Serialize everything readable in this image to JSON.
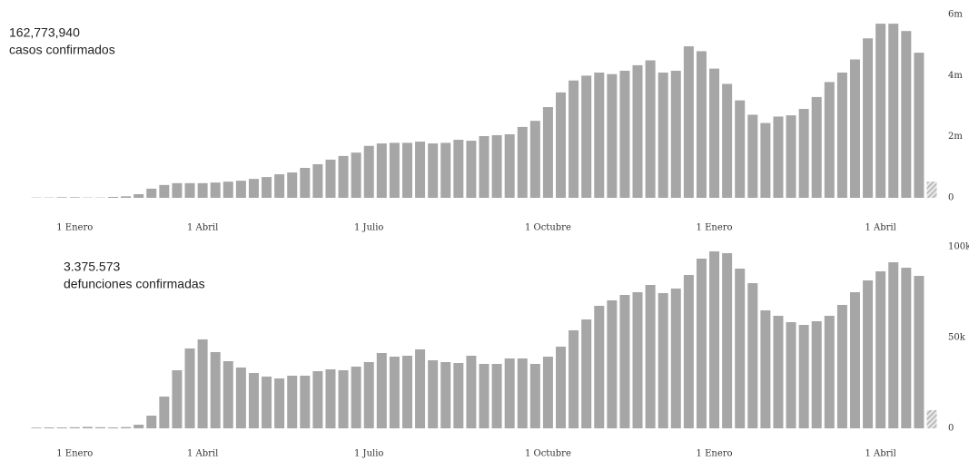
{
  "chart_data": [
    {
      "type": "bar",
      "title": "162,773,940",
      "subtitle": "casos confirmados",
      "color": "#a6a6a6",
      "last_bar_hatched": true,
      "ylim": [
        0,
        6000000
      ],
      "yticks": [
        {
          "value": 0,
          "label": "0"
        },
        {
          "value": 2000000,
          "label": "2m"
        },
        {
          "value": 4000000,
          "label": "4m"
        },
        {
          "value": 6000000,
          "label": "6m"
        }
      ],
      "categories": [
        null,
        null,
        null,
        "1 Enero",
        null,
        null,
        null,
        null,
        null,
        null,
        null,
        null,
        null,
        "1 Abril",
        null,
        null,
        null,
        null,
        null,
        null,
        null,
        null,
        null,
        null,
        null,
        null,
        "1 Julio",
        null,
        null,
        null,
        null,
        null,
        null,
        null,
        null,
        null,
        null,
        null,
        null,
        null,
        "1 Octubre",
        null,
        null,
        null,
        null,
        null,
        null,
        null,
        null,
        null,
        null,
        null,
        null,
        "1 Enero",
        null,
        null,
        null,
        null,
        null,
        null,
        null,
        null,
        null,
        null,
        null,
        null,
        "1 Abril",
        null,
        null,
        null,
        null
      ],
      "values": [
        10000,
        10000,
        20000,
        20000,
        10000,
        10000,
        30000,
        50000,
        120000,
        300000,
        420000,
        480000,
        480000,
        480000,
        500000,
        530000,
        560000,
        620000,
        680000,
        770000,
        830000,
        980000,
        1100000,
        1250000,
        1370000,
        1480000,
        1700000,
        1780000,
        1800000,
        1800000,
        1840000,
        1780000,
        1800000,
        1900000,
        1870000,
        2020000,
        2050000,
        2080000,
        2320000,
        2520000,
        2970000,
        3450000,
        3840000,
        4000000,
        4100000,
        4050000,
        4160000,
        4340000,
        4500000,
        4100000,
        4160000,
        4960000,
        4800000,
        4230000,
        3730000,
        3190000,
        2720000,
        2450000,
        2660000,
        2700000,
        2910000,
        3300000,
        3790000,
        4100000,
        4530000,
        5220000,
        5700000,
        5700000,
        5460000,
        4750000,
        530000
      ]
    },
    {
      "type": "bar",
      "title": "3.375.573",
      "subtitle": "defunciones confirmadas",
      "color": "#a6a6a6",
      "last_bar_hatched": true,
      "ylim": [
        0,
        100000
      ],
      "yticks": [
        {
          "value": 0,
          "label": "0"
        },
        {
          "value": 50000,
          "label": "50k"
        },
        {
          "value": 100000,
          "label": "100k"
        }
      ],
      "categories": [
        null,
        null,
        null,
        "1 Enero",
        null,
        null,
        null,
        null,
        null,
        null,
        null,
        null,
        null,
        "1 Abril",
        null,
        null,
        null,
        null,
        null,
        null,
        null,
        null,
        null,
        null,
        null,
        null,
        "1 Julio",
        null,
        null,
        null,
        null,
        null,
        null,
        null,
        null,
        null,
        null,
        null,
        null,
        null,
        "1 Octubre",
        null,
        null,
        null,
        null,
        null,
        null,
        null,
        null,
        null,
        null,
        null,
        null,
        "1 Enero",
        null,
        null,
        null,
        null,
        null,
        null,
        null,
        null,
        null,
        null,
        null,
        null,
        "1 Abril",
        null,
        null,
        null,
        null
      ],
      "values": [
        400,
        500,
        500,
        600,
        800,
        600,
        500,
        700,
        2000,
        7000,
        17500,
        32000,
        44000,
        49000,
        42000,
        37000,
        33500,
        30500,
        28500,
        27500,
        29000,
        29000,
        31500,
        32500,
        32000,
        34000,
        36500,
        41500,
        39500,
        40000,
        43500,
        37500,
        36500,
        36000,
        40000,
        35500,
        35500,
        38500,
        38500,
        35500,
        39500,
        45000,
        54000,
        60000,
        67500,
        70500,
        73500,
        75000,
        79000,
        74500,
        77000,
        84500,
        93500,
        97500,
        96500,
        88000,
        80000,
        65000,
        62000,
        58500,
        57000,
        59000,
        62000,
        68000,
        75000,
        81500,
        86500,
        91500,
        88500,
        84000,
        10000
      ]
    }
  ]
}
